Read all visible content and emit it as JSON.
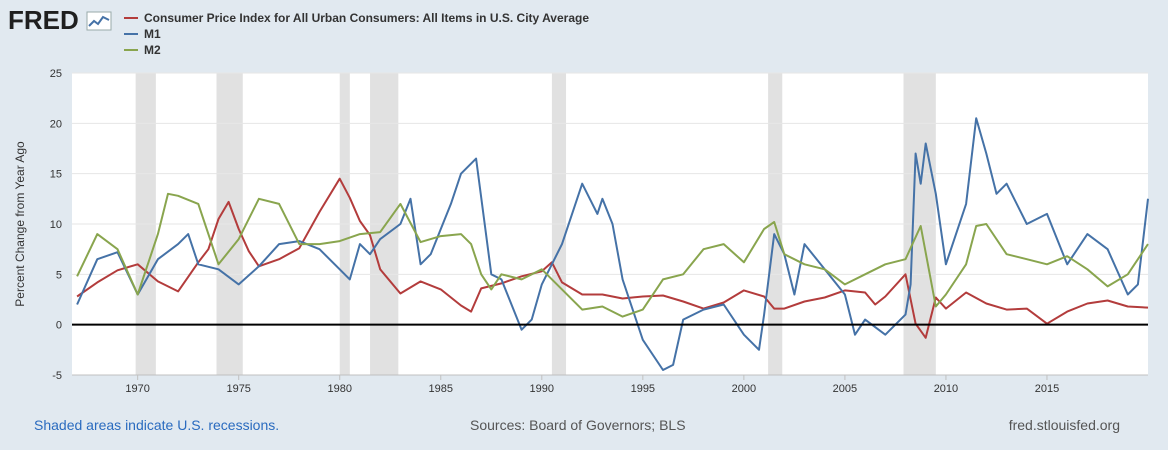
{
  "header": {
    "logo_text": "FRED",
    "logo_icon": "line-chart-icon"
  },
  "footer": {
    "recession_note": "Shaded areas indicate U.S. recessions.",
    "sources": "Sources: Board of Governors; BLS",
    "site": "fred.stlouisfed.org"
  },
  "chart_data": {
    "type": "line",
    "title": "",
    "xlabel": "",
    "ylabel": "Percent Change from Year Ago",
    "xlim": [
      1966.75,
      2020.0
    ],
    "ylim": [
      -5,
      25
    ],
    "yticks": [
      -5,
      0,
      5,
      10,
      15,
      20,
      25
    ],
    "xticks": [
      1970,
      1975,
      1980,
      1985,
      1990,
      1995,
      2000,
      2005,
      2010,
      2015
    ],
    "grid": "horizontal",
    "legend_position": "top-left",
    "recessions": [
      [
        1969.9,
        1970.9
      ],
      [
        1973.9,
        1975.2
      ],
      [
        1980.0,
        1980.5
      ],
      [
        1981.5,
        1982.9
      ],
      [
        1990.5,
        1991.2
      ],
      [
        2001.2,
        2001.9
      ],
      [
        2007.9,
        2009.5
      ]
    ],
    "series": [
      {
        "name": "Consumer Price Index for All Urban Consumers: All Items in U.S. City Average",
        "color": "#b33c3c",
        "x": [
          1967,
          1968,
          1969,
          1970,
          1971,
          1972,
          1973,
          1973.5,
          1974,
          1974.5,
          1975,
          1975.5,
          1976,
          1977,
          1978,
          1979,
          1980,
          1980.5,
          1981,
          1981.5,
          1982,
          1983,
          1984,
          1985,
          1986,
          1986.5,
          1987,
          1988,
          1989,
          1990,
          1990.5,
          1991,
          1992,
          1993,
          1994,
          1995,
          1996,
          1997,
          1998,
          1999,
          2000,
          2001,
          2001.5,
          2002,
          2003,
          2004,
          2005,
          2006,
          2006.5,
          2007,
          2008,
          2008.5,
          2009,
          2009.5,
          2010,
          2011,
          2012,
          2013,
          2014,
          2015,
          2016,
          2017,
          2018,
          2019,
          2020
        ],
        "values": [
          2.8,
          4.2,
          5.4,
          6.0,
          4.3,
          3.3,
          6.2,
          7.5,
          10.5,
          12.2,
          9.5,
          7.3,
          5.8,
          6.5,
          7.6,
          11.2,
          14.5,
          12.6,
          10.3,
          8.9,
          5.5,
          3.1,
          4.3,
          3.5,
          1.9,
          1.3,
          3.6,
          4.1,
          4.8,
          5.3,
          6.2,
          4.2,
          3.0,
          3.0,
          2.6,
          2.8,
          2.9,
          2.3,
          1.6,
          2.2,
          3.4,
          2.8,
          1.6,
          1.6,
          2.3,
          2.7,
          3.4,
          3.2,
          2.0,
          2.8,
          5.0,
          0.1,
          -1.3,
          2.7,
          1.6,
          3.2,
          2.1,
          1.5,
          1.6,
          0.1,
          1.3,
          2.1,
          2.4,
          1.8,
          1.7
        ]
      },
      {
        "name": "M1",
        "color": "#4572a7",
        "x": [
          1967,
          1968,
          1969,
          1970,
          1971,
          1972,
          1972.5,
          1973,
          1974,
          1975,
          1976,
          1977,
          1978,
          1979,
          1980,
          1980.5,
          1981,
          1981.5,
          1982,
          1983,
          1983.5,
          1984,
          1984.5,
          1985,
          1985.5,
          1986,
          1986.75,
          1987.5,
          1988,
          1989,
          1989.5,
          1990,
          1991,
          1992,
          1992.75,
          1993,
          1993.5,
          1994,
          1995,
          1996,
          1996.5,
          1997,
          1998,
          1999,
          2000,
          2000.75,
          2001,
          2001.5,
          2002,
          2002.5,
          2003,
          2004,
          2005,
          2005.5,
          2006,
          2007,
          2008,
          2008.25,
          2008.5,
          2008.75,
          2009,
          2009.5,
          2010,
          2011,
          2011.5,
          2012,
          2012.5,
          2013,
          2014,
          2015,
          2016,
          2017,
          2018,
          2019,
          2019.5,
          2020
        ],
        "values": [
          2.0,
          6.5,
          7.2,
          3.0,
          6.5,
          8.0,
          9.0,
          6.0,
          5.5,
          4.0,
          5.8,
          8.0,
          8.3,
          7.5,
          5.5,
          4.5,
          8.0,
          7.0,
          8.5,
          10.0,
          12.5,
          6.0,
          7.0,
          9.5,
          12.0,
          15.0,
          16.5,
          5.0,
          4.5,
          -0.5,
          0.5,
          4.0,
          8.0,
          14.0,
          11.0,
          12.5,
          10.0,
          4.5,
          -1.5,
          -4.5,
          -4.0,
          0.5,
          1.5,
          2.0,
          -1.0,
          -2.5,
          1.0,
          9.0,
          7.0,
          3.0,
          8.0,
          5.5,
          3.0,
          -1.0,
          0.5,
          -1.0,
          1.0,
          4.0,
          17.0,
          14.0,
          18.0,
          13.0,
          6.0,
          12.0,
          20.5,
          17.0,
          13.0,
          14.0,
          10.0,
          11.0,
          6.0,
          9.0,
          7.5,
          3.0,
          4.0,
          12.5
        ]
      },
      {
        "name": "M2",
        "color": "#89a54e",
        "x": [
          1967,
          1968,
          1969,
          1970,
          1971,
          1971.5,
          1972,
          1973,
          1974,
          1975,
          1976,
          1977,
          1978,
          1979,
          1980,
          1981,
          1982,
          1983,
          1984,
          1985,
          1986,
          1986.5,
          1987,
          1987.5,
          1988,
          1989,
          1990,
          1991,
          1992,
          1993,
          1994,
          1995,
          1996,
          1997,
          1998,
          1999,
          2000,
          2001,
          2001.5,
          2002,
          2003,
          2004,
          2005,
          2006,
          2007,
          2008,
          2008.75,
          2009.5,
          2010,
          2011,
          2011.5,
          2012,
          2013,
          2014,
          2015,
          2016,
          2017,
          2018,
          2019,
          2020
        ],
        "values": [
          4.8,
          9.0,
          7.5,
          3.0,
          9.0,
          13.0,
          12.8,
          12.0,
          6.0,
          8.5,
          12.5,
          12.0,
          8.0,
          8.0,
          8.3,
          9.0,
          9.2,
          12.0,
          8.2,
          8.8,
          9.0,
          8.0,
          5.0,
          3.5,
          5.0,
          4.5,
          5.5,
          3.5,
          1.5,
          1.8,
          0.8,
          1.5,
          4.5,
          5.0,
          7.5,
          8.0,
          6.2,
          9.5,
          10.2,
          7.0,
          6.0,
          5.5,
          4.0,
          5.0,
          6.0,
          6.5,
          9.8,
          1.8,
          3.0,
          6.0,
          9.8,
          10.0,
          7.0,
          6.5,
          6.0,
          6.8,
          5.5,
          3.8,
          5.0,
          8.0
        ]
      }
    ]
  }
}
